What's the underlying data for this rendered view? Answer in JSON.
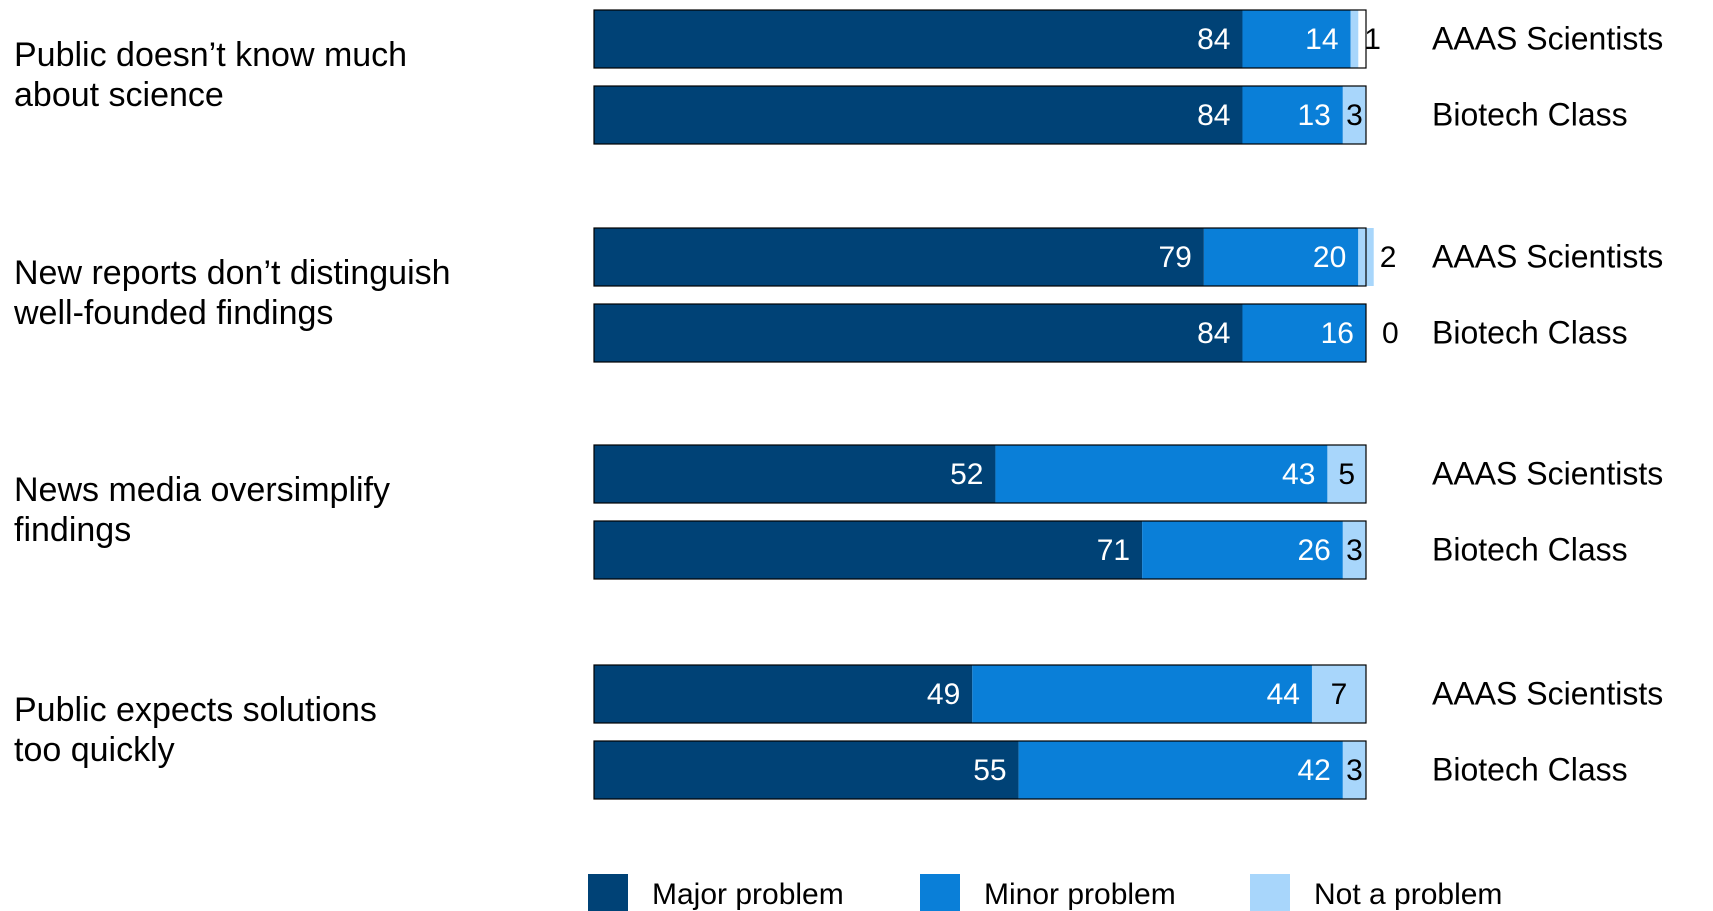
{
  "chart_data": {
    "type": "bar",
    "orientation": "horizontal",
    "stacked": true,
    "xlim": [
      0,
      100
    ],
    "categories": [
      "Public doesn’t know much about science",
      "New reports don’t distinguish well-founded findings",
      "News media oversimplify findings",
      "Public expects solutions too quickly"
    ],
    "groups": [
      "AAAS Scientists",
      "Biotech Class"
    ],
    "series": [
      {
        "name": "Major problem",
        "color": "#004276",
        "label_color": "#ffffff",
        "values": [
          [
            84,
            84
          ],
          [
            79,
            84
          ],
          [
            52,
            71
          ],
          [
            49,
            55
          ]
        ]
      },
      {
        "name": "Minor problem",
        "color": "#0a7fd8",
        "label_color": "#ffffff",
        "values": [
          [
            14,
            13
          ],
          [
            20,
            16
          ],
          [
            43,
            26
          ],
          [
            44,
            42
          ]
        ]
      },
      {
        "name": "Not a problem",
        "color": "#a8d6fb",
        "label_color": "#000000",
        "values": [
          [
            1,
            3
          ],
          [
            2,
            0
          ],
          [
            5,
            3
          ],
          [
            7,
            3
          ]
        ]
      }
    ],
    "legend_position": "bottom",
    "grid": false
  }
}
